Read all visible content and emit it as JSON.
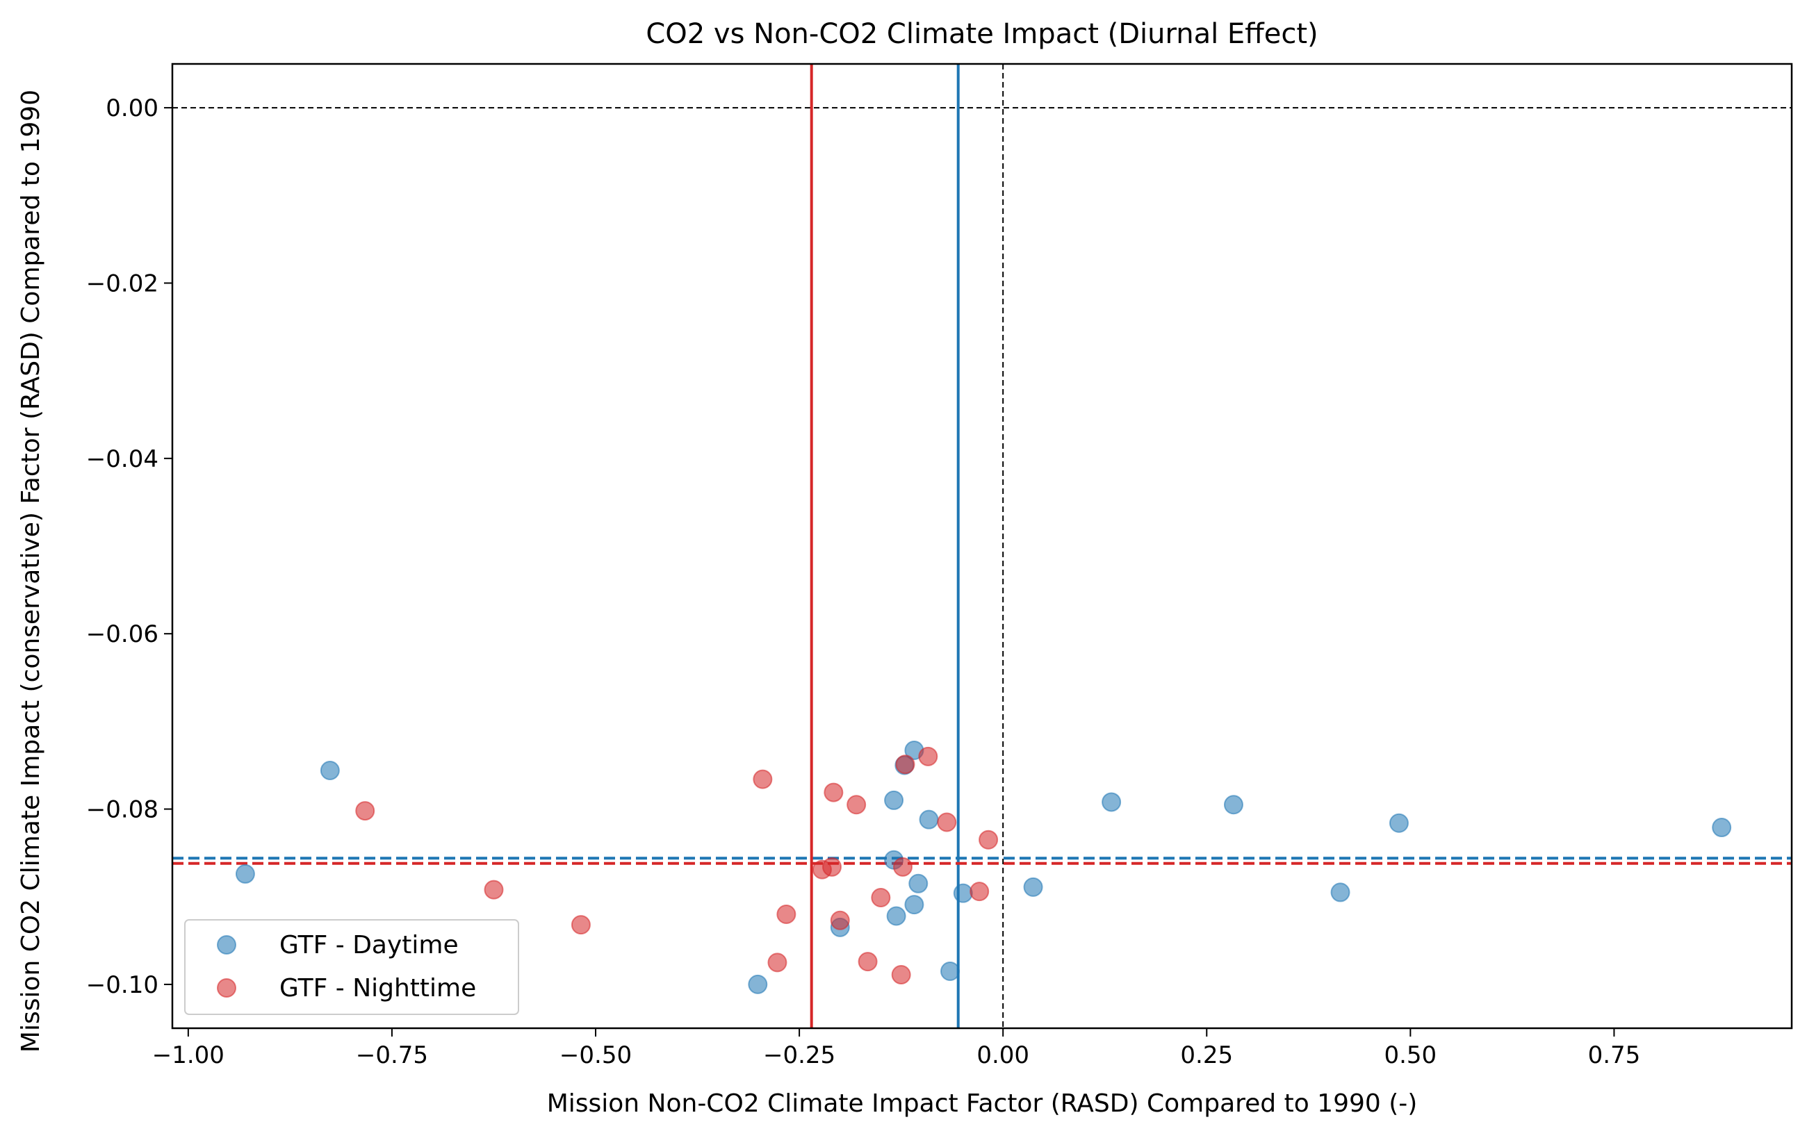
{
  "chart_data": {
    "type": "scatter",
    "title": "CO2 vs Non-CO2 Climate Impact (Diurnal Effect)",
    "xlabel": "Mission Non-CO2 Climate Impact Factor (RASD) Compared to 1990 (-)",
    "ylabel": "Mission CO2 Climate Impact (conservative) Factor (RASD) Compared to 1990",
    "xlim": [
      -1.0195,
      0.968
    ],
    "ylim": [
      -0.105,
      0.005
    ],
    "x_ticks": [
      -1.0,
      -0.75,
      -0.5,
      -0.25,
      0.0,
      0.25,
      0.5,
      0.75
    ],
    "x_tick_labels": [
      "−1.00",
      "−0.75",
      "−0.50",
      "−0.25",
      "0.00",
      "0.25",
      "0.50",
      "0.75"
    ],
    "y_ticks": [
      0.0,
      -0.02,
      -0.04,
      -0.06,
      -0.08,
      -0.1
    ],
    "y_tick_labels": [
      "0.00",
      "−0.02",
      "−0.04",
      "−0.06",
      "−0.08",
      "−0.10"
    ],
    "grid": false,
    "legend_position": "lower-left",
    "zero_lines": {
      "x": 0.0,
      "y": 0.0,
      "color": "#000000",
      "style": "dashed"
    },
    "series": [
      {
        "name": "GTF - Daytime",
        "color": "#1f77b4",
        "mean_x": -0.055,
        "mean_y": -0.0856,
        "points": [
          [
            -0.93,
            -0.0874
          ],
          [
            -0.826,
            -0.0756
          ],
          [
            -0.301,
            -0.1
          ],
          [
            -0.2,
            -0.0935
          ],
          [
            -0.134,
            -0.0858
          ],
          [
            -0.134,
            -0.079
          ],
          [
            -0.131,
            -0.0922
          ],
          [
            -0.121,
            -0.075
          ],
          [
            -0.109,
            -0.0733
          ],
          [
            -0.109,
            -0.0909
          ],
          [
            -0.104,
            -0.0885
          ],
          [
            -0.091,
            -0.0812
          ],
          [
            -0.065,
            -0.0985
          ],
          [
            -0.049,
            -0.0896
          ],
          [
            0.037,
            -0.0889
          ],
          [
            0.133,
            -0.0792
          ],
          [
            0.283,
            -0.0795
          ],
          [
            0.414,
            -0.0895
          ],
          [
            0.486,
            -0.0816
          ],
          [
            0.882,
            -0.0821
          ]
        ]
      },
      {
        "name": "GTF - Nighttime",
        "color": "#d62728",
        "mean_x": -0.235,
        "mean_y": -0.0862,
        "points": [
          [
            -0.783,
            -0.0802
          ],
          [
            -0.625,
            -0.0892
          ],
          [
            -0.518,
            -0.0932
          ],
          [
            -0.295,
            -0.0766
          ],
          [
            -0.277,
            -0.0975
          ],
          [
            -0.266,
            -0.092
          ],
          [
            -0.222,
            -0.0869
          ],
          [
            -0.21,
            -0.0866
          ],
          [
            -0.208,
            -0.0781
          ],
          [
            -0.2,
            -0.0927
          ],
          [
            -0.18,
            -0.0795
          ],
          [
            -0.166,
            -0.0974
          ],
          [
            -0.15,
            -0.0901
          ],
          [
            -0.125,
            -0.0989
          ],
          [
            -0.123,
            -0.0866
          ],
          [
            -0.12,
            -0.0749
          ],
          [
            -0.092,
            -0.074
          ],
          [
            -0.069,
            -0.0815
          ],
          [
            -0.029,
            -0.0894
          ],
          [
            -0.018,
            -0.0835
          ]
        ]
      }
    ]
  }
}
